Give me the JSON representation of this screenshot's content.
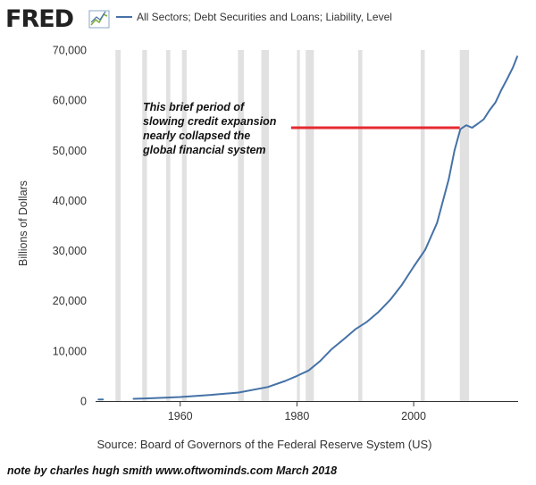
{
  "logo": {
    "text": "FRED"
  },
  "chart_data": {
    "type": "line",
    "legend": "All Sectors; Debt Securities and Loans; Liability, Level",
    "ylabel": "Billions of Dollars",
    "xlabel": "",
    "xlim": [
      1945.5,
      2017.9
    ],
    "ylim": [
      0,
      70000
    ],
    "xticks": [
      1960,
      1980,
      2000
    ],
    "xtick_labels": [
      "1960",
      "1980",
      "2000"
    ],
    "yticks": [
      0,
      10000,
      20000,
      30000,
      40000,
      50000,
      60000,
      70000
    ],
    "ytick_labels": [
      "0",
      "10,000",
      "20,000",
      "30,000",
      "40,000",
      "50,000",
      "60,000",
      "70,000"
    ],
    "grid": "vertical recession bands",
    "line_color": "#4572a7",
    "recession_color": "#e1e1e1",
    "recessions": [
      [
        1948.9,
        1949.8
      ],
      [
        1953.5,
        1954.3
      ],
      [
        1957.6,
        1958.3
      ],
      [
        1960.3,
        1961.1
      ],
      [
        1969.9,
        1970.9
      ],
      [
        1973.9,
        1975.2
      ],
      [
        1980.0,
        1980.5
      ],
      [
        1981.5,
        1982.9
      ],
      [
        1990.5,
        1991.2
      ],
      [
        2001.2,
        2001.9
      ],
      [
        2007.9,
        2009.5
      ]
    ],
    "series": [
      {
        "segments": [
          {
            "x": [
              1946.0,
              1946.75
            ],
            "y": [
              300,
              300
            ]
          },
          {
            "x": [
              1952,
              1955,
              1960,
              1965,
              1970,
              1975,
              1978,
              1980,
              1982,
              1984,
              1986,
              1988,
              1990,
              1992,
              1994,
              1996,
              1998,
              2000,
              2002,
              2004,
              2006,
              2007,
              2008,
              2009,
              2010,
              2011,
              2012,
              2013,
              2014,
              2015,
              2016,
              2017,
              2017.75
            ],
            "y": [
              450,
              550,
              800,
              1200,
              1700,
              2800,
              4000,
              5000,
              6100,
              8000,
              10400,
              12300,
              14300,
              15800,
              17800,
              20200,
              23200,
              26800,
              30200,
              35500,
              44200,
              50000,
              54200,
              55000,
              54500,
              55300,
              56200,
              58000,
              59500,
              62000,
              64200,
              66500,
              68700
            ]
          }
        ]
      }
    ],
    "annotation": {
      "lines": [
        "This brief period of",
        "slowing credit expansion",
        "nearly collapsed the",
        "global financial system"
      ],
      "marker_color": "#e52a30",
      "marker_x_start": 1979.0,
      "marker_x_end": 2007.9,
      "marker_y": 54500
    },
    "source": "Source: Board of Governors of the Federal Reserve System (US)"
  },
  "note": "note by charles hugh smith  www.oftwominds.com  March 2018"
}
